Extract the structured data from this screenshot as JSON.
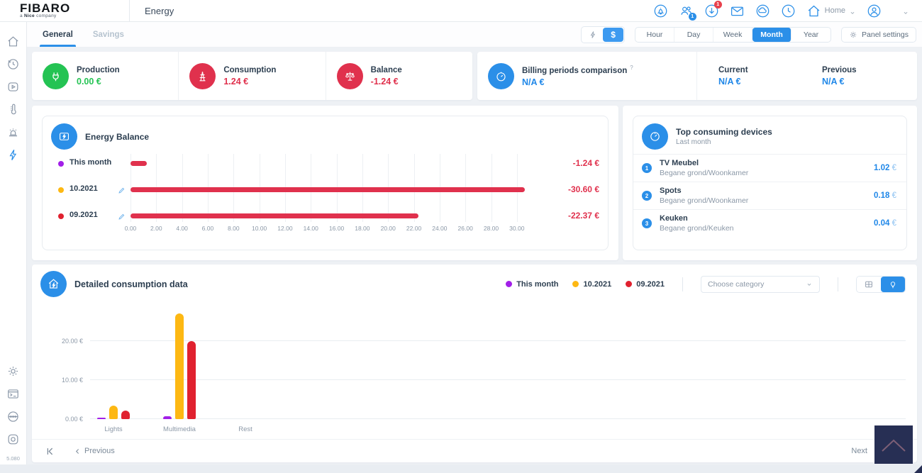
{
  "header": {
    "logo": "FIBARO",
    "logo_sub_prefix": "a",
    "logo_sub_brand": "Nice",
    "logo_sub_suffix": "company",
    "title": "Energy",
    "home_label": "Home",
    "badge_users": "1",
    "badge_updates": "1",
    "icons": [
      "alarm-icon",
      "users-icon",
      "update-download-icon",
      "mail-icon",
      "cloud-icon",
      "clock-icon",
      "home-icon",
      "profile-icon",
      "chevron-down-icon"
    ]
  },
  "tabs": [
    {
      "label": "General",
      "active": true
    },
    {
      "label": "Savings",
      "active": false
    }
  ],
  "toolbar": {
    "currency_symbol": "$",
    "periods": [
      "Hour",
      "Day",
      "Week",
      "Month",
      "Year"
    ],
    "active_period": "Month",
    "panel_settings_label": "Panel settings"
  },
  "summary": {
    "production": {
      "label": "Production",
      "value": "0.00 €",
      "color": "#24c353"
    },
    "consumption": {
      "label": "Consumption",
      "value": "1.24 €",
      "color": "#e0314d"
    },
    "balance": {
      "label": "Balance",
      "value": "-1.24 €",
      "color": "#e0314d"
    },
    "billing": {
      "label": "Billing periods comparison",
      "hint": "?",
      "value": "N/A €",
      "current_label": "Current",
      "current_value": "N/A €",
      "previous_label": "Previous",
      "previous_value": "N/A €",
      "accent": "#1f87e8"
    }
  },
  "top_devices": {
    "title": "Top consuming devices",
    "subtitle": "Last month",
    "items": [
      {
        "rank": "1",
        "name": "TV Meubel",
        "location": "Begane grond/Woonkamer",
        "value": "1.02",
        "currency": "€"
      },
      {
        "rank": "2",
        "name": "Spots",
        "location": "Begane grond/Woonkamer",
        "value": "0.18",
        "currency": "€"
      },
      {
        "rank": "3",
        "name": "Keuken",
        "location": "Begane grond/Keuken",
        "value": "0.04",
        "currency": "€"
      }
    ]
  },
  "detailed": {
    "category_placeholder": "Choose category",
    "nav": {
      "previous": "Previous",
      "next": "Next"
    }
  },
  "footer": {
    "version": "5.080"
  },
  "chart_data": [
    {
      "id": "energy-balance",
      "type": "bar",
      "orientation": "horizontal",
      "title": "Energy Balance",
      "rows": [
        {
          "label": "This month",
          "dot_color": "#a21fe8",
          "value": 1.24,
          "display": "-1.24 €",
          "editable": false
        },
        {
          "label": "10.2021",
          "dot_color": "#fdb813",
          "value": 30.6,
          "display": "-30.60 €",
          "editable": true
        },
        {
          "label": "09.2021",
          "dot_color": "#e0212f",
          "value": 22.37,
          "display": "-22.37 €",
          "editable": true
        }
      ],
      "bar_color": "#e0314d",
      "x_ticks": [
        "0.00",
        "2.00",
        "4.00",
        "6.00",
        "8.00",
        "10.00",
        "12.00",
        "14.00",
        "16.00",
        "18.00",
        "20.00",
        "22.00",
        "24.00",
        "26.00",
        "28.00",
        "30.00"
      ],
      "x_max": 31,
      "grid": true
    },
    {
      "id": "detailed-consumption",
      "type": "bar",
      "title": "Detailed consumption data",
      "categories": [
        "Lights",
        "Multimedia",
        "Rest"
      ],
      "series": [
        {
          "name": "This month",
          "color": "#a21fe8",
          "values": [
            0.3,
            0.8,
            0
          ]
        },
        {
          "name": "10.2021",
          "color": "#fdb813",
          "values": [
            3.5,
            27,
            0
          ]
        },
        {
          "name": "09.2021",
          "color": "#e0212f",
          "values": [
            2.2,
            20,
            0
          ]
        }
      ],
      "y_ticks": [
        {
          "v": 0,
          "label": "0.00 €"
        },
        {
          "v": 10,
          "label": "10.00 €"
        },
        {
          "v": 20,
          "label": "20.00 €"
        }
      ],
      "y_max": 29,
      "ylabel": "",
      "xlabel": "",
      "grid": true,
      "legend_position": "top-right"
    }
  ]
}
